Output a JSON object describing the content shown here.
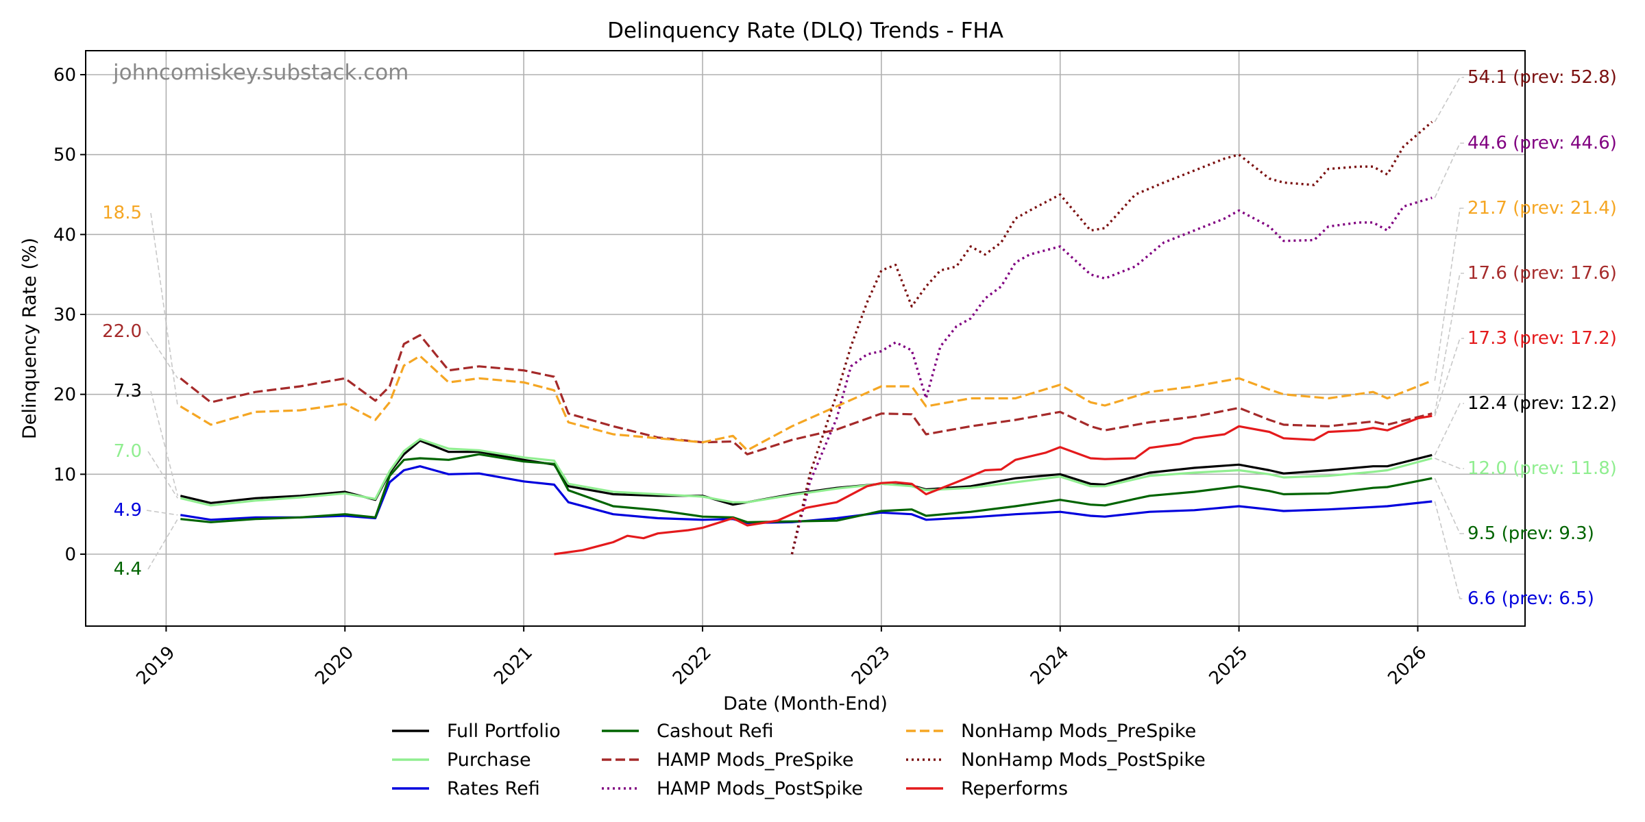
{
  "chart_data": {
    "type": "line",
    "title": "Delinquency Rate (DLQ) Trends - FHA",
    "xlabel": "Date (Month-End)",
    "ylabel": "Delinquency Rate (%)",
    "watermark": "johncomiskey.substack.com",
    "xlim": [
      2018.55,
      2026.6
    ],
    "ylim": [
      -9,
      63
    ],
    "xticks": [
      {
        "value": 2019,
        "label": "2019"
      },
      {
        "value": 2020,
        "label": "2020"
      },
      {
        "value": 2021,
        "label": "2021"
      },
      {
        "value": 2022,
        "label": "2022"
      },
      {
        "value": 2023,
        "label": "2023"
      },
      {
        "value": 2024,
        "label": "2024"
      },
      {
        "value": 2025,
        "label": "2025"
      },
      {
        "value": 2026,
        "label": "2026"
      }
    ],
    "yticks": [
      {
        "value": 0,
        "label": "0"
      },
      {
        "value": 10,
        "label": "10"
      },
      {
        "value": 20,
        "label": "20"
      },
      {
        "value": 30,
        "label": "30"
      },
      {
        "value": 40,
        "label": "40"
      },
      {
        "value": 50,
        "label": "50"
      },
      {
        "value": 60,
        "label": "60"
      }
    ],
    "grid": true,
    "legend_position": "bottom-center",
    "series": [
      {
        "name": "Full Portfolio",
        "color": "#000000",
        "dash": "solid",
        "x": [
          2019.08,
          2019.25,
          2019.5,
          2019.75,
          2020.0,
          2020.17,
          2020.25,
          2020.33,
          2020.42,
          2020.58,
          2020.75,
          2021.0,
          2021.17,
          2021.25,
          2021.5,
          2021.75,
          2022.0,
          2022.17,
          2022.25,
          2022.5,
          2022.75,
          2023.0,
          2023.17,
          2023.25,
          2023.5,
          2023.75,
          2024.0,
          2024.17,
          2024.25,
          2024.5,
          2024.75,
          2025.0,
          2025.17,
          2025.25,
          2025.5,
          2025.75,
          2025.83,
          2026.08
        ],
        "y": [
          7.3,
          6.4,
          7.0,
          7.3,
          7.8,
          6.8,
          10.2,
          12.5,
          14.2,
          12.8,
          12.8,
          11.8,
          11.2,
          8.5,
          7.5,
          7.3,
          7.3,
          6.2,
          6.5,
          7.5,
          8.3,
          8.8,
          8.6,
          8.1,
          8.5,
          9.5,
          10.0,
          8.8,
          8.7,
          10.2,
          10.8,
          11.2,
          10.5,
          10.1,
          10.5,
          11.0,
          11.0,
          12.4
        ]
      },
      {
        "name": "Purchase",
        "color": "#90ee90",
        "dash": "solid",
        "x": [
          2019.08,
          2019.25,
          2019.5,
          2019.75,
          2020.0,
          2020.17,
          2020.25,
          2020.33,
          2020.42,
          2020.58,
          2020.75,
          2021.0,
          2021.17,
          2021.25,
          2021.5,
          2021.75,
          2022.0,
          2022.17,
          2022.25,
          2022.5,
          2022.75,
          2023.0,
          2023.17,
          2023.25,
          2023.5,
          2023.75,
          2024.0,
          2024.17,
          2024.25,
          2024.5,
          2024.75,
          2025.0,
          2025.17,
          2025.25,
          2025.5,
          2025.75,
          2025.83,
          2026.08
        ],
        "y": [
          7.0,
          6.1,
          6.7,
          7.1,
          7.6,
          6.9,
          10.4,
          12.9,
          14.4,
          13.2,
          13.0,
          12.1,
          11.7,
          8.8,
          7.8,
          7.5,
          7.2,
          6.5,
          6.5,
          7.4,
          8.2,
          8.8,
          8.5,
          8.0,
          8.3,
          9.0,
          9.7,
          8.5,
          8.5,
          9.8,
          10.2,
          10.5,
          10.0,
          9.6,
          9.8,
          10.3,
          10.5,
          12.0
        ]
      },
      {
        "name": "Rates Refi",
        "color": "#0000dd",
        "dash": "solid",
        "x": [
          2019.08,
          2019.25,
          2019.5,
          2019.75,
          2020.0,
          2020.17,
          2020.25,
          2020.33,
          2020.42,
          2020.58,
          2020.75,
          2021.0,
          2021.17,
          2021.25,
          2021.5,
          2021.75,
          2022.0,
          2022.17,
          2022.25,
          2022.5,
          2022.75,
          2023.0,
          2023.17,
          2023.25,
          2023.5,
          2023.75,
          2024.0,
          2024.17,
          2024.25,
          2024.5,
          2024.75,
          2025.0,
          2025.17,
          2025.25,
          2025.5,
          2025.75,
          2025.83,
          2026.08
        ],
        "y": [
          4.9,
          4.3,
          4.6,
          4.6,
          4.8,
          4.5,
          9.0,
          10.5,
          11.0,
          10.0,
          10.1,
          9.1,
          8.7,
          6.5,
          5.0,
          4.5,
          4.3,
          4.4,
          3.9,
          4.0,
          4.5,
          5.2,
          5.0,
          4.3,
          4.6,
          5.0,
          5.3,
          4.8,
          4.7,
          5.3,
          5.5,
          6.0,
          5.6,
          5.4,
          5.6,
          5.9,
          6.0,
          6.6
        ]
      },
      {
        "name": "Cashout Refi",
        "color": "#006400",
        "dash": "solid",
        "x": [
          2019.08,
          2019.25,
          2019.5,
          2019.75,
          2020.0,
          2020.17,
          2020.25,
          2020.33,
          2020.42,
          2020.58,
          2020.75,
          2021.0,
          2021.17,
          2021.25,
          2021.5,
          2021.75,
          2022.0,
          2022.17,
          2022.25,
          2022.5,
          2022.75,
          2023.0,
          2023.17,
          2023.25,
          2023.5,
          2023.75,
          2024.0,
          2024.17,
          2024.25,
          2024.5,
          2024.75,
          2025.0,
          2025.17,
          2025.25,
          2025.5,
          2025.75,
          2025.83,
          2026.08
        ],
        "y": [
          4.4,
          4.0,
          4.4,
          4.6,
          5.0,
          4.6,
          9.8,
          11.8,
          12.0,
          11.8,
          12.5,
          11.6,
          11.3,
          8.0,
          6.0,
          5.5,
          4.7,
          4.6,
          4.0,
          4.1,
          4.2,
          5.4,
          5.6,
          4.8,
          5.3,
          6.0,
          6.8,
          6.2,
          6.1,
          7.3,
          7.8,
          8.5,
          7.9,
          7.5,
          7.6,
          8.3,
          8.4,
          9.5
        ]
      },
      {
        "name": "HAMP Mods_PreSpike",
        "color": "#a52a2a",
        "dash": "dashed",
        "x": [
          2019.08,
          2019.25,
          2019.5,
          2019.75,
          2020.0,
          2020.17,
          2020.25,
          2020.33,
          2020.42,
          2020.58,
          2020.75,
          2021.0,
          2021.17,
          2021.25,
          2021.5,
          2021.75,
          2022.0,
          2022.17,
          2022.25,
          2022.5,
          2022.75,
          2023.0,
          2023.17,
          2023.25,
          2023.5,
          2023.75,
          2024.0,
          2024.17,
          2024.25,
          2024.5,
          2024.75,
          2025.0,
          2025.17,
          2025.25,
          2025.5,
          2025.75,
          2025.83,
          2026.08
        ],
        "y": [
          22.0,
          19.0,
          20.3,
          21.0,
          22.0,
          19.2,
          21.0,
          26.3,
          27.4,
          23.0,
          23.5,
          23.0,
          22.2,
          17.6,
          16.0,
          14.6,
          14.0,
          14.1,
          12.5,
          14.3,
          15.6,
          17.6,
          17.5,
          15.0,
          16.0,
          16.8,
          17.8,
          16.0,
          15.5,
          16.5,
          17.2,
          18.3,
          16.8,
          16.2,
          16.0,
          16.6,
          16.2,
          17.6
        ]
      },
      {
        "name": "HAMP Mods_PostSpike",
        "color": "#800080",
        "dash": "dotted",
        "x": [
          2022.5,
          2022.6,
          2022.75,
          2022.83,
          2022.92,
          2023.0,
          2023.08,
          2023.17,
          2023.25,
          2023.33,
          2023.42,
          2023.5,
          2023.58,
          2023.67,
          2023.75,
          2023.83,
          2024.0,
          2024.17,
          2024.25,
          2024.42,
          2024.58,
          2024.75,
          2024.92,
          2025.0,
          2025.17,
          2025.25,
          2025.42,
          2025.5,
          2025.67,
          2025.75,
          2025.83,
          2025.92,
          2026.08
        ],
        "y": [
          0.0,
          9.0,
          17.0,
          23.5,
          25.0,
          25.4,
          26.5,
          25.5,
          19.5,
          26.0,
          28.5,
          29.5,
          32.0,
          33.5,
          36.5,
          37.5,
          38.5,
          35.0,
          34.5,
          36.0,
          39.0,
          40.5,
          42.0,
          43.0,
          41.0,
          39.2,
          39.3,
          41.0,
          41.5,
          41.5,
          40.5,
          43.5,
          44.6
        ]
      },
      {
        "name": "NonHamp Mods_PreSpike",
        "color": "#f5a623",
        "dash": "dashed",
        "x": [
          2019.08,
          2019.25,
          2019.5,
          2019.75,
          2020.0,
          2020.17,
          2020.25,
          2020.33,
          2020.42,
          2020.58,
          2020.75,
          2021.0,
          2021.17,
          2021.25,
          2021.5,
          2021.75,
          2022.0,
          2022.17,
          2022.25,
          2022.5,
          2022.75,
          2023.0,
          2023.17,
          2023.25,
          2023.5,
          2023.75,
          2024.0,
          2024.17,
          2024.25,
          2024.5,
          2024.75,
          2025.0,
          2025.17,
          2025.25,
          2025.5,
          2025.75,
          2025.83,
          2026.08
        ],
        "y": [
          18.5,
          16.2,
          17.8,
          18.0,
          18.8,
          16.8,
          19.0,
          23.6,
          24.8,
          21.5,
          22.0,
          21.5,
          20.5,
          16.5,
          15.0,
          14.5,
          14.0,
          14.8,
          13.0,
          16.0,
          18.5,
          21.0,
          21.0,
          18.5,
          19.5,
          19.5,
          21.2,
          19.0,
          18.6,
          20.3,
          21.0,
          22.0,
          20.6,
          20.0,
          19.5,
          20.3,
          19.5,
          21.7
        ]
      },
      {
        "name": "NonHamp Mods_PostSpike",
        "color": "#7b1010",
        "dash": "dotted",
        "x": [
          2022.5,
          2022.6,
          2022.75,
          2022.83,
          2022.92,
          2023.0,
          2023.08,
          2023.17,
          2023.25,
          2023.33,
          2023.42,
          2023.5,
          2023.58,
          2023.67,
          2023.75,
          2023.83,
          2024.0,
          2024.17,
          2024.25,
          2024.42,
          2024.58,
          2024.75,
          2024.92,
          2025.0,
          2025.17,
          2025.25,
          2025.42,
          2025.5,
          2025.67,
          2025.75,
          2025.83,
          2025.92,
          2026.08
        ],
        "y": [
          0.0,
          10.0,
          20.0,
          26.0,
          31.5,
          35.5,
          36.2,
          31.0,
          33.5,
          35.5,
          36.0,
          38.5,
          37.5,
          39.0,
          42.0,
          43.0,
          45.0,
          40.5,
          40.8,
          45.0,
          46.5,
          48.0,
          49.5,
          50.0,
          47.0,
          46.5,
          46.2,
          48.2,
          48.5,
          48.5,
          47.5,
          51.0,
          54.1
        ]
      },
      {
        "name": "Reperforms",
        "color": "#e41a1c",
        "dash": "solid",
        "x": [
          2021.17,
          2021.33,
          2021.5,
          2021.58,
          2021.67,
          2021.75,
          2021.92,
          2022.0,
          2022.17,
          2022.25,
          2022.42,
          2022.58,
          2022.75,
          2022.92,
          2023.0,
          2023.08,
          2023.17,
          2023.25,
          2023.42,
          2023.58,
          2023.67,
          2023.75,
          2023.92,
          2024.0,
          2024.17,
          2024.25,
          2024.42,
          2024.5,
          2024.67,
          2024.75,
          2024.92,
          2025.0,
          2025.17,
          2025.25,
          2025.42,
          2025.5,
          2025.67,
          2025.75,
          2025.83,
          2026.0,
          2026.08
        ],
        "y": [
          0.0,
          0.5,
          1.5,
          2.3,
          2.0,
          2.6,
          3.0,
          3.3,
          4.5,
          3.6,
          4.2,
          5.8,
          6.5,
          8.5,
          8.9,
          9.0,
          8.8,
          7.5,
          9.0,
          10.5,
          10.6,
          11.8,
          12.7,
          13.4,
          12.0,
          11.9,
          12.0,
          13.3,
          13.8,
          14.5,
          15.0,
          16.0,
          15.3,
          14.5,
          14.3,
          15.3,
          15.5,
          15.8,
          15.5,
          17.0,
          17.3
        ]
      }
    ],
    "left_annotations": [
      {
        "text": "18.5",
        "series": "NonHamp Mods_PreSpike",
        "color": "#f5a623"
      },
      {
        "text": "22.0",
        "series": "HAMP Mods_PreSpike",
        "color": "#a52a2a"
      },
      {
        "text": "7.3",
        "series": "Full Portfolio",
        "color": "#000000"
      },
      {
        "text": "7.0",
        "series": "Purchase",
        "color": "#90ee90"
      },
      {
        "text": "4.9",
        "series": "Rates Refi",
        "color": "#0000dd"
      },
      {
        "text": "4.4",
        "series": "Cashout Refi",
        "color": "#006400"
      }
    ],
    "right_annotations": [
      {
        "text": "54.1 (prev: 52.8)",
        "series": "NonHamp Mods_PostSpike",
        "color": "#7b1010"
      },
      {
        "text": "44.6 (prev: 44.6)",
        "series": "HAMP Mods_PostSpike",
        "color": "#800080"
      },
      {
        "text": "21.7 (prev: 21.4)",
        "series": "NonHamp Mods_PreSpike",
        "color": "#f5a623"
      },
      {
        "text": "17.6 (prev: 17.6)",
        "series": "HAMP Mods_PreSpike",
        "color": "#a52a2a"
      },
      {
        "text": "17.3 (prev: 17.2)",
        "series": "Reperforms",
        "color": "#e41a1c"
      },
      {
        "text": "12.4 (prev: 12.2)",
        "series": "Full Portfolio",
        "color": "#000000"
      },
      {
        "text": "12.0 (prev: 11.8)",
        "series": "Purchase",
        "color": "#90ee90"
      },
      {
        "text": "9.5 (prev: 9.3)",
        "series": "Cashout Refi",
        "color": "#006400"
      },
      {
        "text": "6.6 (prev: 6.5)",
        "series": "Rates Refi",
        "color": "#0000dd"
      }
    ],
    "legend": [
      [
        "Full Portfolio",
        "Purchase",
        "Rates Refi"
      ],
      [
        "Cashout Refi",
        "HAMP Mods_PreSpike",
        "HAMP Mods_PostSpike"
      ],
      [
        "NonHamp Mods_PreSpike",
        "NonHamp Mods_PostSpike",
        "Reperforms"
      ]
    ]
  }
}
